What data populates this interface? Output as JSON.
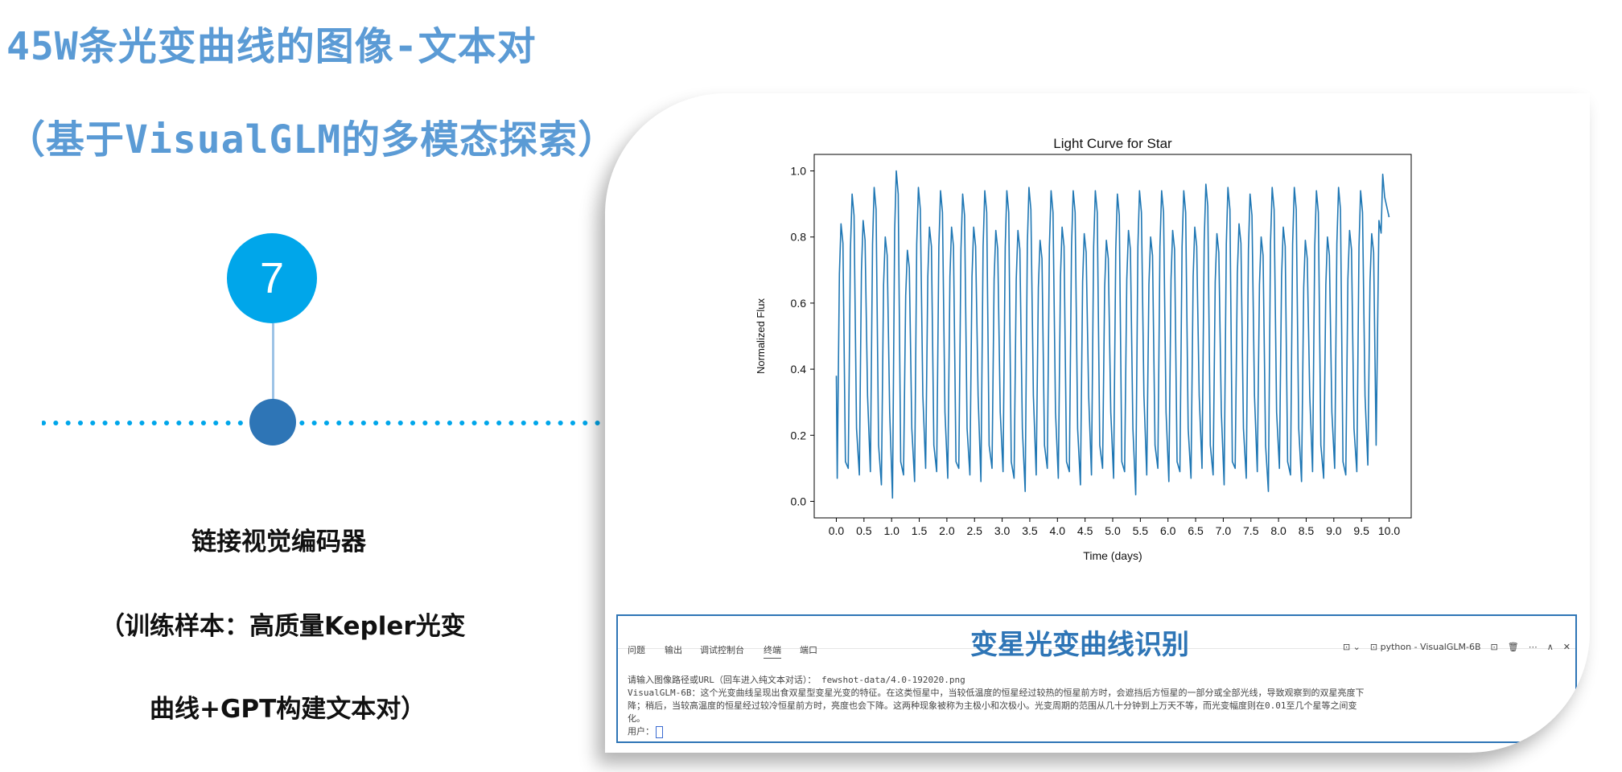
{
  "title_line1": "45W条光变曲线的图像-文本对",
  "title_line2": "（基于VisualGLM的多模态探索）",
  "step": {
    "number": "7"
  },
  "labels": [
    "链接视觉编码器",
    "（训练样本：高质量Kepler光变",
    "曲线+GPT构建文本对）"
  ],
  "colors": {
    "title": "#5b9bd5",
    "circle": "#00a6ea",
    "node": "#2e75b6",
    "line": "#1f77b4"
  },
  "chart_data": {
    "type": "line",
    "title": "Light Curve for Star",
    "xlabel": "Time (days)",
    "ylabel": "Normalized Flux",
    "xlim": [
      -0.4,
      10.4
    ],
    "ylim": [
      -0.05,
      1.05
    ],
    "xticks": [
      "0.0",
      "0.5",
      "1.0",
      "1.5",
      "2.0",
      "2.5",
      "3.0",
      "3.5",
      "4.0",
      "4.5",
      "5.0",
      "5.5",
      "6.0",
      "6.5",
      "7.0",
      "7.5",
      "8.0",
      "8.5",
      "9.0",
      "9.5",
      "10.0"
    ],
    "yticks": [
      "0.0",
      "0.2",
      "0.4",
      "0.6",
      "0.8",
      "1.0"
    ],
    "period_days": 0.2,
    "peaks": [
      0.84,
      0.93,
      0.85,
      0.95,
      0.8,
      1.0,
      0.76,
      0.95,
      0.83,
      0.94,
      0.83,
      0.93,
      0.83,
      0.94,
      0.82,
      0.94,
      0.82,
      0.95,
      0.79,
      0.94,
      0.83,
      0.94,
      0.81,
      0.94,
      0.79,
      0.93,
      0.82,
      0.94,
      0.8,
      0.94,
      0.82,
      0.94,
      0.83,
      0.96,
      0.81,
      0.95,
      0.84,
      0.93,
      0.8,
      0.95,
      0.83,
      0.95,
      0.79,
      0.94,
      0.8,
      0.95,
      0.82,
      0.94,
      0.81,
      0.99
    ],
    "troughs": [
      0.07,
      0.1,
      0.08,
      0.09,
      0.05,
      0.01,
      0.08,
      0.06,
      0.1,
      0.09,
      0.07,
      0.1,
      0.08,
      0.06,
      0.1,
      0.09,
      0.07,
      0.03,
      0.08,
      0.1,
      0.07,
      0.09,
      0.05,
      0.08,
      0.1,
      0.07,
      0.09,
      0.02,
      0.08,
      0.1,
      0.06,
      0.09,
      0.07,
      0.1,
      0.08,
      0.05,
      0.1,
      0.07,
      0.09,
      0.03,
      0.1,
      0.08,
      0.06,
      0.09,
      0.07,
      0.1,
      0.08,
      0.09,
      0.11,
      0.85
    ]
  },
  "terminal": {
    "overlay_title": "变星光变曲线识别",
    "tabs": [
      "问题",
      "输出",
      "调试控制台",
      "终端",
      "端口"
    ],
    "active_tab": "终端",
    "right_items": [
      "⊡ ⌄",
      "⊡ python - VisualGLM-6B",
      "⊡",
      "🗑",
      "⋯",
      "∧",
      "✕"
    ],
    "lines": [
      "请输入图像路径或URL（回车进入纯文本对话）： fewshot-data/4.0-192020.png",
      "VisualGLM-6B：这个光变曲线呈现出食双星型变星光变的特征。在这类恒星中，当较低温度的恒星经过较热的恒星前方时，会遮挡后方恒星的一部分或全部光线，导致观察到的双星亮度下",
      "降；稍后，当较高温度的恒星经过较冷恒星前方时，亮度也会下降。这两种现象被称为主极小和次极小。光变周期的范围从几十分钟到上万天不等，而光变幅度则在0.01至几个星等之间变",
      "化。"
    ],
    "prompt": "用户："
  }
}
